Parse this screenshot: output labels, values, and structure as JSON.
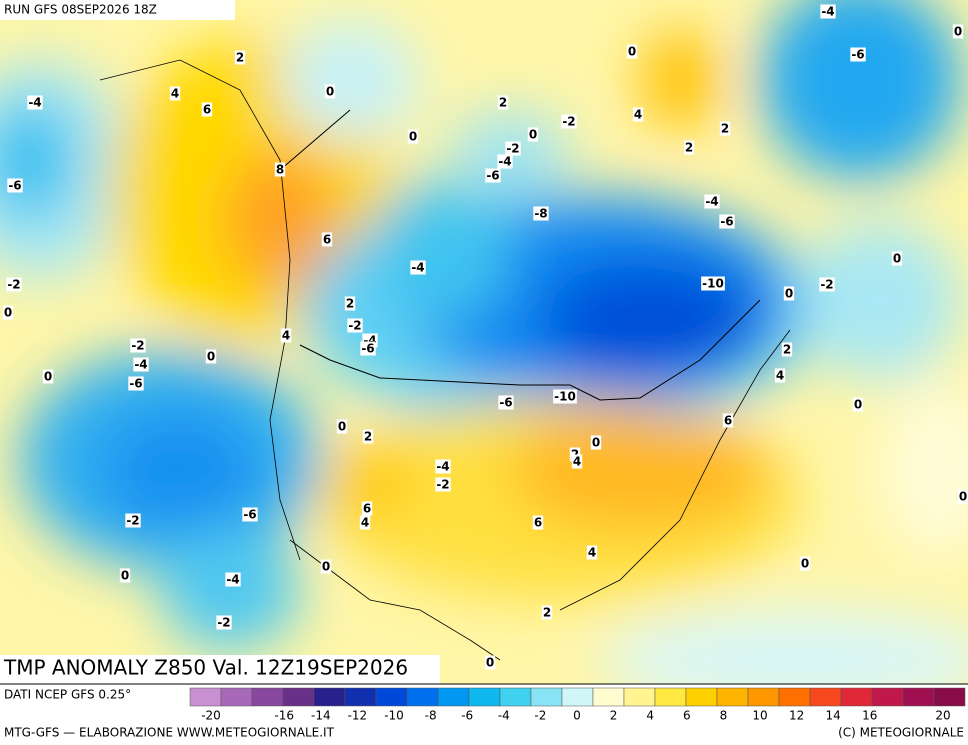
{
  "header": {
    "run": "RUN GFS 08SEP2026 18Z",
    "title": "TMP ANOMALY Z850 Val. 12Z19SEP2026"
  },
  "map": {
    "contour_labels": [
      2,
      4,
      6,
      -4,
      -6,
      8,
      6,
      0,
      0,
      -4,
      -2,
      0,
      2,
      -2,
      -4,
      -6,
      4,
      -2,
      -4,
      -6,
      0,
      0,
      -6,
      -10,
      -10,
      -8,
      -6,
      -4,
      -2,
      2,
      0,
      -2,
      0,
      4,
      2,
      2,
      -4,
      -6,
      -4,
      -6,
      0,
      0,
      -2,
      0,
      2,
      4,
      0,
      6,
      0,
      2,
      4,
      -4,
      -2,
      0,
      2,
      6,
      4,
      6,
      4,
      0,
      -6,
      -2,
      0,
      -4,
      0,
      -2,
      2,
      0,
      0
    ]
  },
  "legend": {
    "source": "DATI NCEP GFS 0.25°",
    "colors": [
      "#c890d0",
      "#a868b8",
      "#8848a0",
      "#683088",
      "#28208c",
      "#1030b0",
      "#0048d8",
      "#0070f0",
      "#0098f0",
      "#10b8f0",
      "#40d0f0",
      "#88e4f4",
      "#d0f6f8",
      "#fffcd0",
      "#fff490",
      "#ffe840",
      "#ffd000",
      "#ffb400",
      "#ff9800",
      "#ff7000",
      "#f84820",
      "#e02838",
      "#c01848",
      "#a01050",
      "#880c48"
    ],
    "ticks": [
      -20,
      -16,
      -14,
      -12,
      -10,
      -8,
      -6,
      -4,
      -2,
      0,
      2,
      4,
      6,
      8,
      10,
      12,
      14,
      16,
      20
    ]
  },
  "footer": {
    "credit": "MTG-GFS — ELABORAZIONE WWW.METEOGIORNALE.IT",
    "copyright": "(C) METEOGIORNALE"
  }
}
